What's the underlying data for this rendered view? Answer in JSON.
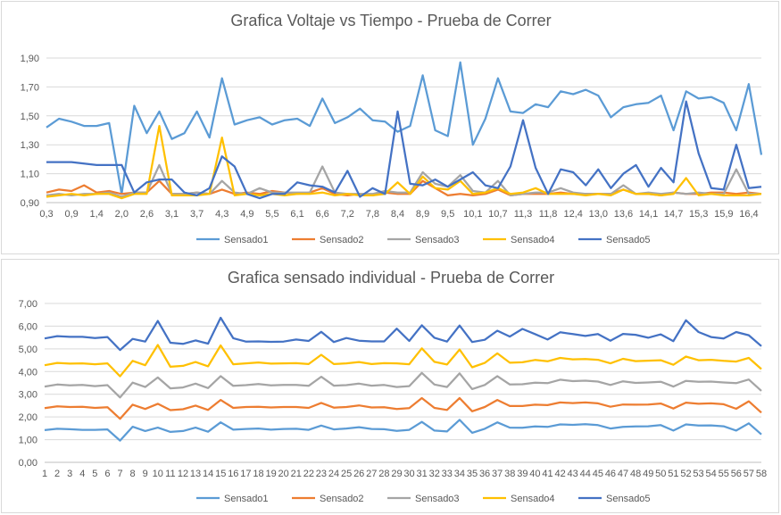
{
  "chart_data": [
    {
      "type": "line",
      "title": "Grafica Voltaje vs Tiempo  - Prueba de Correr",
      "xlabel": "",
      "ylabel": "",
      "ylim": [
        0.9,
        1.9
      ],
      "yticks": [
        "0,90",
        "1,10",
        "1,30",
        "1,50",
        "1,70",
        "1,90"
      ],
      "x_tick_labels": [
        "0,3",
        "0,9",
        "1,4",
        "2,0",
        "2,6",
        "3,1",
        "3,7",
        "4,3",
        "4,9",
        "5,5",
        "6,1",
        "6,6",
        "7,2",
        "7,8",
        "8,4",
        "8,9",
        "9,5",
        "10,1",
        "10,7",
        "11,3",
        "11,8",
        "12,4",
        "13,0",
        "13,6",
        "14,1",
        "14,7",
        "15,3",
        "15,9",
        "16,4"
      ],
      "grid": "horizontal",
      "legend_position": "bottom",
      "series": [
        {
          "name": "Sensado1",
          "color": "#5b9bd5",
          "values": [
            1.42,
            1.48,
            1.46,
            1.43,
            1.43,
            1.45,
            0.96,
            1.57,
            1.38,
            1.53,
            1.34,
            1.38,
            1.53,
            1.35,
            1.76,
            1.44,
            1.47,
            1.49,
            1.44,
            1.47,
            1.48,
            1.43,
            1.62,
            1.45,
            1.49,
            1.55,
            1.47,
            1.46,
            1.39,
            1.43,
            1.78,
            1.4,
            1.36,
            1.87,
            1.3,
            1.48,
            1.76,
            1.53,
            1.52,
            1.58,
            1.56,
            1.67,
            1.65,
            1.68,
            1.64,
            1.49,
            1.56,
            1.58,
            1.59,
            1.64,
            1.4,
            1.67,
            1.62,
            1.63,
            1.59,
            1.4,
            1.72,
            1.23
          ]
        },
        {
          "name": "Sensado2",
          "color": "#ed7d31",
          "values": [
            0.97,
            0.99,
            0.98,
            1.02,
            0.97,
            0.98,
            0.96,
            0.97,
            0.97,
            1.05,
            0.96,
            0.96,
            0.97,
            0.96,
            0.99,
            0.96,
            0.97,
            0.96,
            0.98,
            0.97,
            0.96,
            0.97,
            1.0,
            0.96,
            0.95,
            0.96,
            0.95,
            0.97,
            0.96,
            0.96,
            1.05,
            1.0,
            0.95,
            0.96,
            0.95,
            0.96,
            0.99,
            0.95,
            0.96,
            0.96,
            0.96,
            0.97,
            0.96,
            0.96,
            0.96,
            0.96,
            0.99,
            0.96,
            0.96,
            0.95,
            0.97,
            0.96,
            0.96,
            0.97,
            0.97,
            0.96,
            0.97,
            0.96
          ]
        },
        {
          "name": "Sensado3",
          "color": "#a5a5a5",
          "values": [
            0.95,
            0.96,
            0.95,
            0.96,
            0.96,
            0.97,
            0.94,
            0.97,
            0.97,
            1.16,
            0.96,
            0.96,
            0.97,
            0.96,
            1.05,
            0.97,
            0.96,
            1.0,
            0.97,
            0.97,
            0.97,
            0.97,
            1.15,
            0.97,
            0.96,
            0.96,
            0.96,
            0.98,
            0.97,
            0.97,
            1.11,
            1.03,
            1.01,
            1.09,
            0.98,
            0.97,
            1.05,
            0.95,
            0.96,
            0.97,
            0.97,
            1.0,
            0.97,
            0.96,
            0.96,
            0.96,
            1.02,
            0.96,
            0.97,
            0.96,
            0.97,
            0.96,
            0.97,
            0.96,
            0.96,
            1.13,
            0.96,
            0.96
          ]
        },
        {
          "name": "Sensado4",
          "color": "#ffc000",
          "values": [
            0.94,
            0.95,
            0.96,
            0.95,
            0.96,
            0.96,
            0.93,
            0.96,
            0.96,
            1.43,
            0.95,
            0.95,
            0.95,
            0.96,
            1.35,
            0.95,
            0.96,
            0.95,
            0.96,
            0.95,
            0.96,
            0.96,
            0.97,
            0.95,
            0.96,
            0.95,
            0.95,
            0.96,
            1.04,
            0.96,
            1.08,
            1.0,
            0.99,
            1.05,
            0.96,
            0.97,
            1.0,
            0.96,
            0.97,
            1.0,
            0.96,
            0.96,
            0.96,
            0.95,
            0.96,
            0.95,
            0.99,
            0.96,
            0.96,
            0.95,
            0.96,
            1.07,
            0.95,
            0.96,
            0.95,
            0.95,
            0.95,
            0.96
          ]
        },
        {
          "name": "Sensado5",
          "color": "#4472c4",
          "values": [
            1.18,
            1.18,
            1.18,
            1.17,
            1.16,
            1.16,
            1.16,
            0.97,
            1.04,
            1.06,
            1.06,
            0.97,
            0.95,
            1.0,
            1.22,
            1.15,
            0.96,
            0.93,
            0.96,
            0.96,
            1.04,
            1.02,
            1.01,
            0.97,
            1.12,
            0.94,
            1.0,
            0.96,
            1.53,
            1.03,
            1.02,
            1.06,
            1.01,
            1.06,
            1.11,
            1.02,
            1.0,
            1.15,
            1.47,
            1.14,
            0.96,
            1.13,
            1.11,
            1.02,
            1.13,
            1.0,
            1.1,
            1.16,
            1.01,
            1.14,
            1.04,
            1.6,
            1.24,
            1.0,
            0.99,
            1.3,
            1.0,
            1.01
          ]
        }
      ]
    },
    {
      "type": "line",
      "title": "Grafica sensado individual - Prueba de Correr",
      "xlabel": "",
      "ylabel": "",
      "ylim": [
        0,
        7
      ],
      "yticks": [
        "0,00",
        "1,00",
        "2,00",
        "3,00",
        "4,00",
        "5,00",
        "6,00",
        "7,00"
      ],
      "x_tick_labels": [
        "1",
        "2",
        "3",
        "4",
        "5",
        "6",
        "7",
        "8",
        "9",
        "10",
        "11",
        "12",
        "13",
        "14",
        "15",
        "16",
        "17",
        "18",
        "19",
        "20",
        "21",
        "22",
        "23",
        "24",
        "25",
        "26",
        "27",
        "28",
        "29",
        "30",
        "31",
        "32",
        "33",
        "34",
        "35",
        "36",
        "37",
        "38",
        "39",
        "40",
        "41",
        "42",
        "43",
        "44",
        "45",
        "46",
        "47",
        "48",
        "49",
        "50",
        "51",
        "52",
        "53",
        "54",
        "55",
        "56",
        "57",
        "58"
      ],
      "grid": "horizontal",
      "legend_position": "bottom",
      "series": [
        {
          "name": "Sensado1",
          "color": "#5b9bd5",
          "values": [
            1.42,
            1.48,
            1.46,
            1.43,
            1.43,
            1.45,
            0.96,
            1.57,
            1.38,
            1.53,
            1.34,
            1.38,
            1.53,
            1.35,
            1.76,
            1.44,
            1.47,
            1.49,
            1.44,
            1.47,
            1.48,
            1.43,
            1.62,
            1.45,
            1.49,
            1.55,
            1.47,
            1.46,
            1.39,
            1.43,
            1.78,
            1.4,
            1.36,
            1.87,
            1.3,
            1.48,
            1.76,
            1.53,
            1.52,
            1.58,
            1.56,
            1.67,
            1.65,
            1.68,
            1.64,
            1.49,
            1.56,
            1.58,
            1.59,
            1.64,
            1.4,
            1.67,
            1.62,
            1.63,
            1.59,
            1.4,
            1.72,
            1.23
          ]
        },
        {
          "name": "Sensado2",
          "color": "#ed7d31",
          "values": [
            2.39,
            2.47,
            2.44,
            2.45,
            2.4,
            2.43,
            1.92,
            2.54,
            2.35,
            2.58,
            2.3,
            2.34,
            2.5,
            2.31,
            2.75,
            2.4,
            2.44,
            2.45,
            2.42,
            2.44,
            2.44,
            2.4,
            2.62,
            2.41,
            2.44,
            2.51,
            2.42,
            2.43,
            2.35,
            2.39,
            2.83,
            2.4,
            2.31,
            2.83,
            2.25,
            2.44,
            2.75,
            2.48,
            2.48,
            2.54,
            2.52,
            2.64,
            2.61,
            2.64,
            2.6,
            2.45,
            2.55,
            2.54,
            2.55,
            2.59,
            2.37,
            2.63,
            2.58,
            2.6,
            2.56,
            2.36,
            2.69,
            2.19
          ]
        },
        {
          "name": "Sensado3",
          "color": "#a5a5a5",
          "values": [
            3.34,
            3.43,
            3.39,
            3.41,
            3.36,
            3.4,
            2.86,
            3.51,
            3.32,
            3.74,
            3.26,
            3.3,
            3.47,
            3.27,
            3.8,
            3.37,
            3.4,
            3.45,
            3.39,
            3.41,
            3.41,
            3.37,
            3.77,
            3.38,
            3.4,
            3.47,
            3.38,
            3.41,
            3.32,
            3.36,
            3.94,
            3.43,
            3.32,
            3.92,
            3.23,
            3.41,
            3.8,
            3.43,
            3.44,
            3.51,
            3.49,
            3.64,
            3.58,
            3.6,
            3.56,
            3.41,
            3.57,
            3.5,
            3.52,
            3.55,
            3.34,
            3.59,
            3.55,
            3.56,
            3.52,
            3.49,
            3.65,
            3.15
          ]
        },
        {
          "name": "Sensado4",
          "color": "#ffc000",
          "values": [
            4.28,
            4.38,
            4.35,
            4.36,
            4.32,
            4.36,
            3.79,
            4.47,
            4.28,
            5.17,
            4.21,
            4.25,
            4.42,
            4.23,
            5.15,
            4.32,
            4.36,
            4.4,
            4.35,
            4.36,
            4.37,
            4.33,
            4.74,
            4.33,
            4.36,
            4.42,
            4.33,
            4.37,
            4.36,
            4.32,
            5.02,
            4.43,
            4.31,
            4.97,
            4.19,
            4.38,
            4.8,
            4.39,
            4.41,
            4.51,
            4.45,
            4.6,
            4.54,
            4.55,
            4.52,
            4.36,
            4.56,
            4.46,
            4.48,
            4.5,
            4.3,
            4.66,
            4.5,
            4.52,
            4.47,
            4.44,
            4.6,
            4.11
          ]
        },
        {
          "name": "Sensado5",
          "color": "#4472c4",
          "values": [
            5.46,
            5.56,
            5.53,
            5.53,
            5.48,
            5.52,
            4.95,
            5.44,
            5.32,
            6.23,
            5.27,
            5.22,
            5.37,
            5.23,
            6.37,
            5.47,
            5.32,
            5.33,
            5.31,
            5.32,
            5.41,
            5.35,
            5.75,
            5.3,
            5.48,
            5.36,
            5.33,
            5.33,
            5.89,
            5.35,
            6.04,
            5.49,
            5.32,
            6.03,
            5.3,
            5.4,
            5.8,
            5.54,
            5.88,
            5.65,
            5.41,
            5.73,
            5.65,
            5.57,
            5.65,
            5.36,
            5.66,
            5.62,
            5.49,
            5.64,
            5.34,
            6.26,
            5.74,
            5.52,
            5.46,
            5.74,
            5.6,
            5.12
          ]
        }
      ]
    }
  ]
}
